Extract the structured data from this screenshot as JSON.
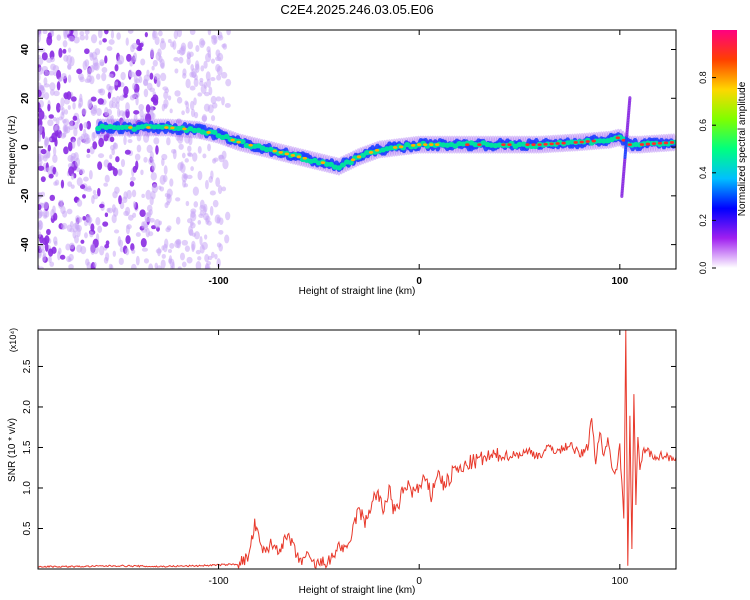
{
  "title": "C2E4.2025.246.03.05.E06",
  "chart_data": [
    {
      "type": "heatmap",
      "title": "C2E4.2025.246.03.05.E06",
      "xlabel": "Height of straight line (km)",
      "ylabel": "Frequency (Hz)",
      "xlim": [
        -190,
        128
      ],
      "ylim": [
        -50,
        48
      ],
      "xticks": [
        -100,
        0,
        100
      ],
      "yticks": [
        -40,
        -20,
        0,
        20,
        40
      ],
      "colorbar": {
        "label": "Normalized spectral amplitude",
        "range": [
          0,
          1
        ],
        "ticks": [
          "0.0",
          "0.2",
          "0.4",
          "0.6",
          "0.8"
        ],
        "tick_values": [
          0,
          0.2,
          0.4,
          0.6,
          0.8
        ],
        "colors": [
          "#ffffff",
          "#a020f0",
          "#0000ff",
          "#00bfff",
          "#00ff7f",
          "#7fff00",
          "#ffd700",
          "#ff4000",
          "#ff0080"
        ]
      },
      "ridge": {
        "x": [
          -155,
          -140,
          -125,
          -110,
          -100,
          -90,
          -80,
          -70,
          -60,
          -50,
          -40,
          -30,
          -20,
          -10,
          0,
          10,
          20,
          40,
          60,
          80,
          95,
          100,
          105,
          110,
          128
        ],
        "freq": [
          8,
          8,
          8,
          7,
          5,
          2,
          0,
          -2,
          -4,
          -6,
          -8,
          -4,
          -1,
          0,
          1,
          1,
          1,
          1,
          1,
          2,
          3,
          4,
          1,
          1,
          2
        ]
      },
      "spike": {
        "x": 103,
        "freq_range": [
          -20,
          20
        ]
      }
    },
    {
      "type": "line",
      "xlabel": "Height of straight line (km)",
      "ylabel": "SNR (10 * v/v)",
      "multiplier": "(x10⁴)",
      "xlim": [
        -190,
        128
      ],
      "ylim": [
        0,
        2.95
      ],
      "xticks": [
        -100,
        0,
        100
      ],
      "yticks": [
        0.5,
        1.0,
        1.5,
        2.0,
        2.5
      ],
      "ytick_labels": [
        "0.5",
        "1.0",
        "1.5",
        "2.0",
        "2.5"
      ],
      "color": "#e8392b",
      "series": [
        {
          "name": "SNR",
          "x": [
            -190,
            -170,
            -150,
            -130,
            -110,
            -100,
            -90,
            -85,
            -82,
            -78,
            -74,
            -70,
            -65,
            -60,
            -56,
            -52,
            -48,
            -44,
            -40,
            -36,
            -33,
            -30,
            -27,
            -24,
            -21,
            -18,
            -15,
            -12,
            -9,
            -6,
            -3,
            0,
            3,
            6,
            9,
            12,
            15,
            18,
            21,
            24,
            27,
            30,
            35,
            40,
            45,
            50,
            55,
            60,
            65,
            70,
            75,
            80,
            84,
            86,
            88,
            90,
            92,
            94,
            96,
            98,
            100,
            102,
            103,
            104,
            105,
            106,
            107,
            108,
            109,
            110,
            112,
            115,
            120,
            128
          ],
          "y": [
            0.03,
            0.03,
            0.04,
            0.03,
            0.04,
            0.05,
            0.06,
            0.15,
            0.55,
            0.2,
            0.3,
            0.25,
            0.4,
            0.1,
            0.15,
            0.05,
            0.08,
            0.1,
            0.3,
            0.2,
            0.5,
            0.75,
            0.55,
            0.8,
            0.95,
            0.7,
            1.0,
            0.65,
            0.9,
            1.05,
            0.95,
            1.0,
            1.1,
            0.9,
            1.2,
            1.05,
            1.1,
            1.25,
            1.2,
            1.3,
            1.32,
            1.35,
            1.38,
            1.4,
            1.4,
            1.42,
            1.45,
            1.4,
            1.5,
            1.45,
            1.55,
            1.4,
            1.5,
            1.9,
            1.3,
            1.7,
            1.4,
            1.6,
            1.3,
            1.2,
            1.5,
            0.6,
            2.9,
            0.1,
            1.9,
            0.2,
            2.2,
            0.8,
            1.6,
            1.2,
            1.5,
            1.42,
            1.4,
            1.38
          ]
        }
      ]
    }
  ]
}
